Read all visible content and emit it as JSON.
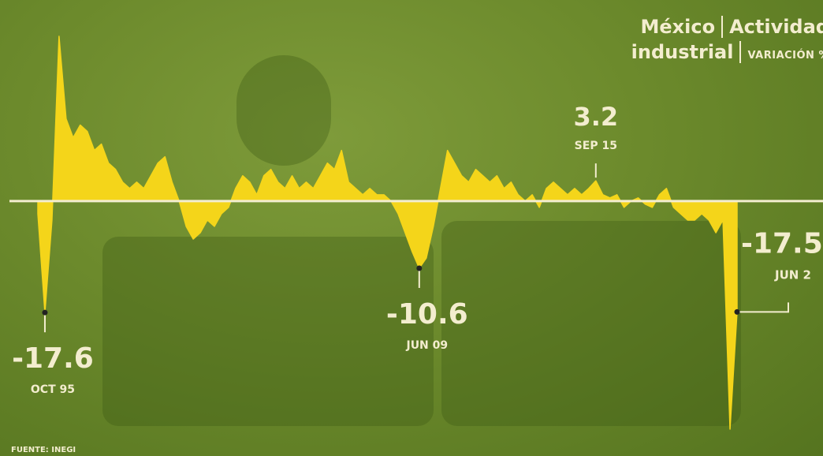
{
  "chart_data": {
    "type": "area",
    "title": "México",
    "subtitle": "Actividad industrial",
    "unit_label": "VARIACIÓN %",
    "source": "FUENTE: INEGI",
    "color": "#f4d51a",
    "zero_line_color": "#f3edcf",
    "ylim": [
      -38,
      28
    ],
    "categories": [
      null,
      "OCT 95",
      null,
      null,
      null,
      null,
      null,
      null,
      null,
      null,
      null,
      null,
      null,
      null,
      null,
      null,
      null,
      null,
      null,
      null,
      null,
      null,
      null,
      null,
      null,
      null,
      null,
      null,
      null,
      null,
      null,
      null,
      null,
      null,
      null,
      null,
      null,
      null,
      null,
      null,
      null,
      null,
      null,
      null,
      null,
      null,
      null,
      null,
      null,
      null,
      null,
      null,
      null,
      null,
      "JUN 09",
      null,
      null,
      null,
      null,
      null,
      null,
      null,
      null,
      null,
      null,
      null,
      null,
      null,
      null,
      null,
      null,
      null,
      null,
      null,
      null,
      null,
      null,
      null,
      null,
      "SEP 15",
      null,
      null,
      null,
      null,
      null,
      null,
      null,
      null,
      null,
      null,
      null,
      null,
      null,
      null,
      null,
      null,
      null,
      null,
      null,
      "JUN 2"
    ],
    "values": [
      -2,
      -17.6,
      -3,
      26,
      13,
      10,
      12,
      11,
      8,
      9,
      6,
      5,
      3,
      2,
      3,
      2,
      4,
      6,
      7,
      3,
      0,
      -4,
      -6,
      -5,
      -3,
      -4,
      -2,
      -1,
      2,
      4,
      3,
      1,
      4,
      5,
      3,
      2,
      4,
      2,
      3,
      2,
      4,
      6,
      5,
      8,
      3,
      2,
      1,
      2,
      1,
      1,
      0,
      -2,
      -5,
      -8,
      -10.6,
      -9,
      -4,
      2,
      8,
      6,
      4,
      3,
      5,
      4,
      3,
      4,
      2,
      3,
      1,
      0,
      1,
      -1,
      2,
      3,
      2,
      1,
      2,
      1,
      2,
      3.2,
      1,
      0.5,
      1,
      -1,
      0,
      0.5,
      -0.5,
      -1,
      1,
      2,
      -1,
      -2,
      -3,
      -3,
      -2,
      -3,
      -5,
      -3,
      -36,
      -17.5
    ]
  }
}
